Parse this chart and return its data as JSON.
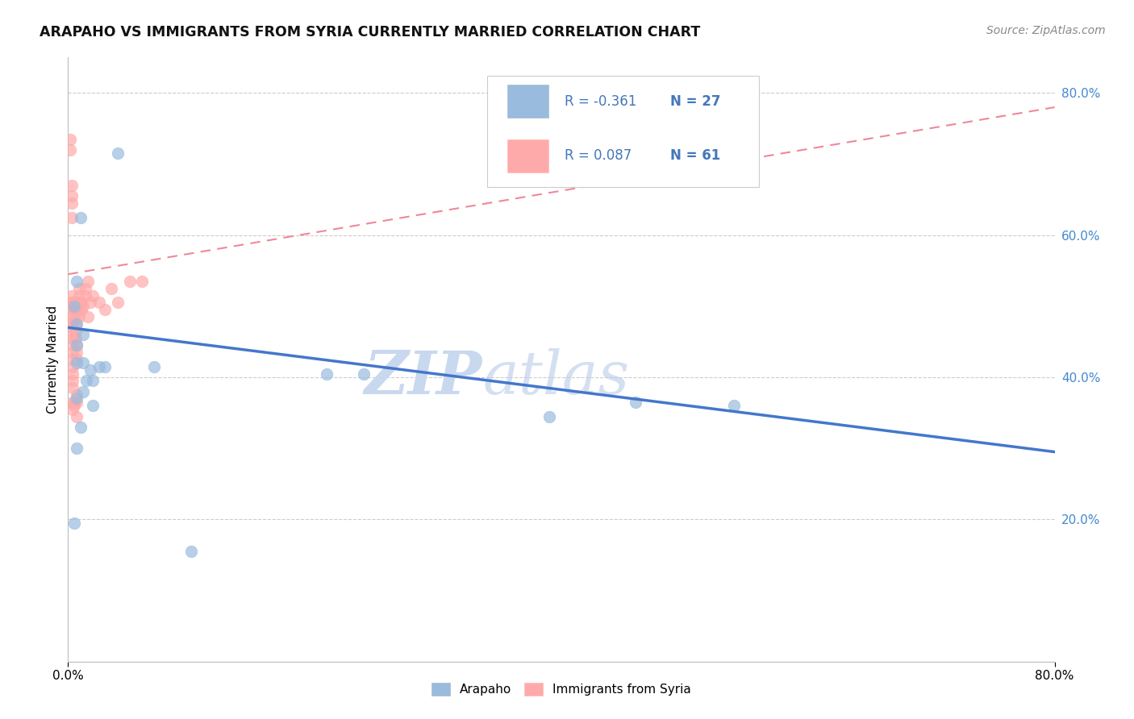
{
  "title": "ARAPAHO VS IMMIGRANTS FROM SYRIA CURRENTLY MARRIED CORRELATION CHART",
  "source": "Source: ZipAtlas.com",
  "ylabel": "Currently Married",
  "right_yticks": [
    0.2,
    0.4,
    0.6,
    0.8
  ],
  "legend_blue_R": "R = -0.361",
  "legend_blue_N": "N = 27",
  "legend_pink_R": "R = 0.087",
  "legend_pink_N": "N = 61",
  "legend_label_blue": "Arapaho",
  "legend_label_pink": "Immigrants from Syria",
  "watermark_zip": "ZIP",
  "watermark_atlas": "atlas",
  "blue_color": "#99BBDD",
  "pink_color": "#FFAAAA",
  "blue_line_color": "#4477CC",
  "pink_line_color": "#EE8899",
  "blue_scatter": [
    [
      0.005,
      0.195
    ],
    [
      0.005,
      0.5
    ],
    [
      0.007,
      0.445
    ],
    [
      0.007,
      0.535
    ],
    [
      0.007,
      0.42
    ],
    [
      0.007,
      0.475
    ],
    [
      0.007,
      0.37
    ],
    [
      0.007,
      0.3
    ],
    [
      0.01,
      0.625
    ],
    [
      0.01,
      0.33
    ],
    [
      0.012,
      0.38
    ],
    [
      0.012,
      0.42
    ],
    [
      0.012,
      0.46
    ],
    [
      0.015,
      0.395
    ],
    [
      0.018,
      0.41
    ],
    [
      0.02,
      0.36
    ],
    [
      0.02,
      0.395
    ],
    [
      0.025,
      0.415
    ],
    [
      0.03,
      0.415
    ],
    [
      0.04,
      0.715
    ],
    [
      0.07,
      0.415
    ],
    [
      0.1,
      0.155
    ],
    [
      0.21,
      0.405
    ],
    [
      0.24,
      0.405
    ],
    [
      0.39,
      0.345
    ],
    [
      0.46,
      0.365
    ],
    [
      0.54,
      0.36
    ]
  ],
  "pink_scatter": [
    [
      0.002,
      0.72
    ],
    [
      0.002,
      0.735
    ],
    [
      0.003,
      0.645
    ],
    [
      0.003,
      0.625
    ],
    [
      0.003,
      0.655
    ],
    [
      0.003,
      0.67
    ],
    [
      0.003,
      0.505
    ],
    [
      0.003,
      0.515
    ],
    [
      0.003,
      0.505
    ],
    [
      0.003,
      0.5
    ],
    [
      0.004,
      0.5
    ],
    [
      0.004,
      0.495
    ],
    [
      0.004,
      0.485
    ],
    [
      0.004,
      0.48
    ],
    [
      0.004,
      0.475
    ],
    [
      0.004,
      0.47
    ],
    [
      0.004,
      0.46
    ],
    [
      0.004,
      0.455
    ],
    [
      0.004,
      0.445
    ],
    [
      0.004,
      0.435
    ],
    [
      0.004,
      0.425
    ],
    [
      0.004,
      0.415
    ],
    [
      0.004,
      0.405
    ],
    [
      0.004,
      0.395
    ],
    [
      0.004,
      0.385
    ],
    [
      0.004,
      0.365
    ],
    [
      0.004,
      0.355
    ],
    [
      0.005,
      0.36
    ],
    [
      0.005,
      0.365
    ],
    [
      0.006,
      0.505
    ],
    [
      0.006,
      0.495
    ],
    [
      0.006,
      0.485
    ],
    [
      0.006,
      0.475
    ],
    [
      0.006,
      0.465
    ],
    [
      0.006,
      0.455
    ],
    [
      0.007,
      0.445
    ],
    [
      0.007,
      0.435
    ],
    [
      0.007,
      0.425
    ],
    [
      0.007,
      0.375
    ],
    [
      0.007,
      0.365
    ],
    [
      0.007,
      0.345
    ],
    [
      0.009,
      0.525
    ],
    [
      0.009,
      0.515
    ],
    [
      0.009,
      0.505
    ],
    [
      0.009,
      0.495
    ],
    [
      0.009,
      0.485
    ],
    [
      0.011,
      0.505
    ],
    [
      0.011,
      0.495
    ],
    [
      0.012,
      0.5
    ],
    [
      0.014,
      0.525
    ],
    [
      0.014,
      0.515
    ],
    [
      0.016,
      0.535
    ],
    [
      0.016,
      0.485
    ],
    [
      0.018,
      0.505
    ],
    [
      0.02,
      0.515
    ],
    [
      0.025,
      0.505
    ],
    [
      0.03,
      0.495
    ],
    [
      0.035,
      0.525
    ],
    [
      0.04,
      0.505
    ],
    [
      0.05,
      0.535
    ],
    [
      0.06,
      0.535
    ]
  ],
  "blue_trend_x": [
    0.0,
    0.8
  ],
  "blue_trend_y": [
    0.47,
    0.295
  ],
  "pink_trend_x": [
    0.0,
    0.8
  ],
  "pink_trend_y": [
    0.545,
    0.78
  ],
  "xlim": [
    0.0,
    0.8
  ],
  "ylim": [
    0.0,
    0.85
  ]
}
